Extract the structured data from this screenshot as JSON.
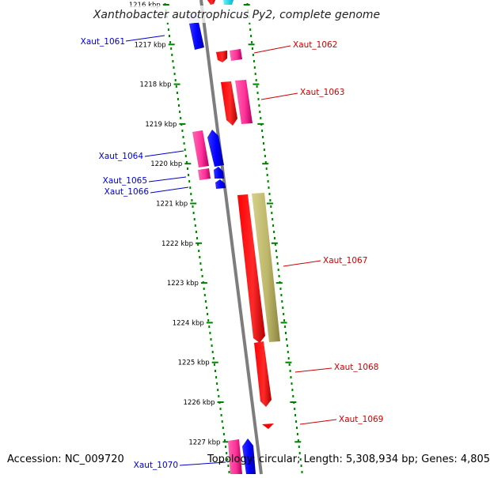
{
  "title": "Xanthobacter autotrophicus Py2, complete genome",
  "accession": "Accession: NC_009720",
  "topology": "Topology: circular; Length: 5,308,934 bp; Genes: 4,805",
  "kbp_ticks": [
    "1216 kbp",
    "1217 kbp",
    "1218 kbp",
    "1219 kbp",
    "1220 kbp",
    "1221 kbp",
    "1222 kbp",
    "1223 kbp",
    "1224 kbp",
    "1225 kbp",
    "1226 kbp",
    "1227 kbp"
  ],
  "genes_left": [
    "Xaut_1061",
    "Xaut_1064",
    "Xaut_1065",
    "Xaut_1066",
    "Xaut_1070"
  ],
  "genes_right": [
    "Xaut_1062",
    "Xaut_1063",
    "Xaut_1067",
    "Xaut_1068",
    "Xaut_1069"
  ],
  "colors": {
    "backbone": "#888888",
    "grid_dots": "#008000",
    "left_label": "#0000cc",
    "right_label": "#cc0000",
    "red_gene": "#ff0000",
    "pink_gene": "#ff3399",
    "blue_gene": "#0000ff",
    "khaki_gene": "#bdb76b",
    "cyan_gene": "#00e5ff"
  }
}
